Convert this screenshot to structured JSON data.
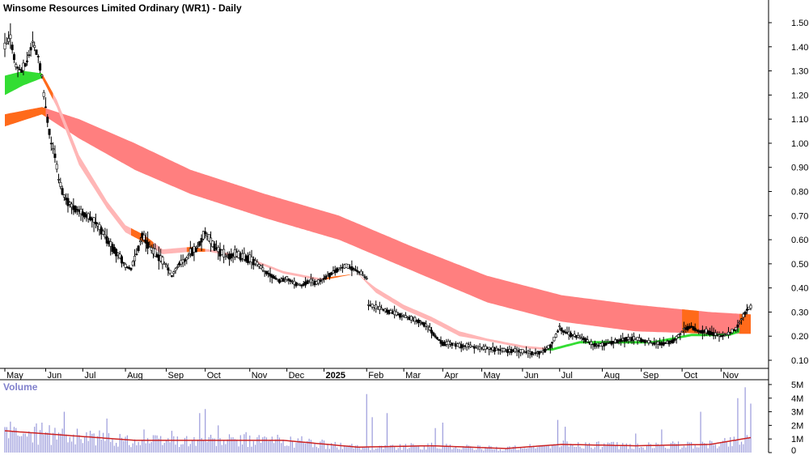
{
  "chart_data": {
    "type": "candlestick",
    "title": "Winsome Resources Limited Ordinary (WR1) - Daily",
    "price_axis": {
      "ylim": [
        0.05,
        1.55
      ],
      "ticks": [
        "1.50",
        "1.40",
        "1.30",
        "1.20",
        "1.10",
        "1.00",
        "0.90",
        "0.80",
        "0.70",
        "0.60",
        "0.50",
        "0.40",
        "0.30",
        "0.20",
        "0.10"
      ],
      "tick_values": [
        1.5,
        1.4,
        1.3,
        1.2,
        1.1,
        1.0,
        0.9,
        0.8,
        0.7,
        0.6,
        0.5,
        0.4,
        0.3,
        0.2,
        0.1
      ]
    },
    "time_axis": {
      "labels": [
        "May",
        "Jun",
        "Jul",
        "Aug",
        "Sep",
        "Oct",
        "Nov",
        "Dec",
        "2025",
        "Feb",
        "Mar",
        "Apr",
        "May",
        "Jun",
        "Jul",
        "Aug",
        "Sep",
        "Oct",
        "Nov"
      ],
      "label_day_index": [
        0,
        22,
        42,
        65,
        87,
        108,
        132,
        152,
        172,
        195,
        215,
        236,
        257,
        279,
        299,
        322,
        343,
        365,
        386
      ],
      "days_total": 402
    },
    "price_keypoints": [
      [
        0,
        1.4
      ],
      [
        3,
        1.44
      ],
      [
        6,
        1.32
      ],
      [
        9,
        1.3
      ],
      [
        12,
        1.34
      ],
      [
        15,
        1.42
      ],
      [
        18,
        1.36
      ],
      [
        20,
        1.28
      ],
      [
        21,
        1.2
      ],
      [
        23,
        1.1
      ],
      [
        25,
        1.0
      ],
      [
        27,
        0.95
      ],
      [
        29,
        0.85
      ],
      [
        32,
        0.78
      ],
      [
        36,
        0.74
      ],
      [
        40,
        0.72
      ],
      [
        44,
        0.7
      ],
      [
        48,
        0.68
      ],
      [
        52,
        0.64
      ],
      [
        56,
        0.59
      ],
      [
        60,
        0.55
      ],
      [
        63,
        0.52
      ],
      [
        65,
        0.49
      ],
      [
        68,
        0.48
      ],
      [
        71,
        0.54
      ],
      [
        74,
        0.62
      ],
      [
        77,
        0.58
      ],
      [
        80,
        0.55
      ],
      [
        84,
        0.52
      ],
      [
        88,
        0.48
      ],
      [
        90,
        0.45
      ],
      [
        94,
        0.5
      ],
      [
        98,
        0.52
      ],
      [
        100,
        0.55
      ],
      [
        103,
        0.56
      ],
      [
        106,
        0.6
      ],
      [
        108,
        0.63
      ],
      [
        112,
        0.58
      ],
      [
        116,
        0.55
      ],
      [
        120,
        0.53
      ],
      [
        124,
        0.54
      ],
      [
        128,
        0.53
      ],
      [
        132,
        0.52
      ],
      [
        136,
        0.5
      ],
      [
        140,
        0.47
      ],
      [
        144,
        0.45
      ],
      [
        148,
        0.43
      ],
      [
        152,
        0.44
      ],
      [
        156,
        0.42
      ],
      [
        160,
        0.41
      ],
      [
        164,
        0.43
      ],
      [
        168,
        0.42
      ],
      [
        172,
        0.44
      ],
      [
        176,
        0.46
      ],
      [
        180,
        0.48
      ],
      [
        184,
        0.49
      ],
      [
        188,
        0.48
      ],
      [
        192,
        0.46
      ],
      [
        195,
        0.44
      ],
      [
        196,
        0.33
      ],
      [
        200,
        0.32
      ],
      [
        204,
        0.31
      ],
      [
        208,
        0.3
      ],
      [
        212,
        0.29
      ],
      [
        216,
        0.28
      ],
      [
        220,
        0.27
      ],
      [
        224,
        0.26
      ],
      [
        228,
        0.24
      ],
      [
        232,
        0.2
      ],
      [
        236,
        0.17
      ],
      [
        240,
        0.17
      ],
      [
        245,
        0.16
      ],
      [
        250,
        0.16
      ],
      [
        255,
        0.15
      ],
      [
        260,
        0.15
      ],
      [
        265,
        0.145
      ],
      [
        270,
        0.14
      ],
      [
        275,
        0.14
      ],
      [
        280,
        0.135
      ],
      [
        285,
        0.13
      ],
      [
        290,
        0.135
      ],
      [
        294,
        0.16
      ],
      [
        297,
        0.2
      ],
      [
        299,
        0.24
      ],
      [
        301,
        0.22
      ],
      [
        304,
        0.21
      ],
      [
        308,
        0.2
      ],
      [
        312,
        0.19
      ],
      [
        316,
        0.17
      ],
      [
        320,
        0.16
      ],
      [
        325,
        0.17
      ],
      [
        330,
        0.18
      ],
      [
        335,
        0.19
      ],
      [
        340,
        0.19
      ],
      [
        345,
        0.18
      ],
      [
        350,
        0.17
      ],
      [
        355,
        0.17
      ],
      [
        360,
        0.18
      ],
      [
        363,
        0.2
      ],
      [
        366,
        0.23
      ],
      [
        370,
        0.24
      ],
      [
        374,
        0.22
      ],
      [
        378,
        0.22
      ],
      [
        382,
        0.21
      ],
      [
        386,
        0.2
      ],
      [
        390,
        0.21
      ],
      [
        394,
        0.23
      ],
      [
        397,
        0.27
      ],
      [
        400,
        0.31
      ],
      [
        402,
        0.32
      ]
    ],
    "long_term_band": {
      "upper": [
        [
          0,
          1.12
        ],
        [
          20,
          1.15
        ],
        [
          40,
          1.1
        ],
        [
          70,
          1.0
        ],
        [
          100,
          0.89
        ],
        [
          140,
          0.79
        ],
        [
          180,
          0.7
        ],
        [
          220,
          0.57
        ],
        [
          260,
          0.45
        ],
        [
          300,
          0.37
        ],
        [
          340,
          0.33
        ],
        [
          380,
          0.3
        ],
        [
          402,
          0.29
        ]
      ],
      "lower": [
        [
          0,
          1.07
        ],
        [
          20,
          1.12
        ],
        [
          40,
          1.02
        ],
        [
          70,
          0.89
        ],
        [
          100,
          0.79
        ],
        [
          140,
          0.69
        ],
        [
          180,
          0.6
        ],
        [
          220,
          0.47
        ],
        [
          260,
          0.34
        ],
        [
          300,
          0.26
        ],
        [
          340,
          0.22
        ],
        [
          380,
          0.21
        ],
        [
          402,
          0.21
        ]
      ]
    },
    "short_term_band": {
      "upper": [
        [
          0,
          1.28
        ],
        [
          10,
          1.3
        ],
        [
          20,
          1.29
        ],
        [
          28,
          1.18
        ],
        [
          40,
          0.95
        ],
        [
          55,
          0.76
        ],
        [
          65,
          0.66
        ],
        [
          75,
          0.62
        ],
        [
          85,
          0.56
        ],
        [
          100,
          0.57
        ],
        [
          110,
          0.56
        ],
        [
          130,
          0.53
        ],
        [
          150,
          0.47
        ],
        [
          170,
          0.44
        ],
        [
          190,
          0.46
        ],
        [
          200,
          0.4
        ],
        [
          215,
          0.33
        ],
        [
          230,
          0.28
        ],
        [
          245,
          0.22
        ],
        [
          260,
          0.19
        ],
        [
          280,
          0.16
        ],
        [
          295,
          0.15
        ],
        [
          310,
          0.18
        ],
        [
          330,
          0.18
        ],
        [
          350,
          0.18
        ],
        [
          370,
          0.21
        ],
        [
          390,
          0.21
        ],
        [
          402,
          0.26
        ]
      ],
      "lower": [
        [
          0,
          1.2
        ],
        [
          10,
          1.24
        ],
        [
          20,
          1.27
        ],
        [
          28,
          1.15
        ],
        [
          40,
          0.91
        ],
        [
          55,
          0.73
        ],
        [
          65,
          0.63
        ],
        [
          75,
          0.59
        ],
        [
          85,
          0.54
        ],
        [
          100,
          0.55
        ],
        [
          110,
          0.55
        ],
        [
          130,
          0.52
        ],
        [
          150,
          0.46
        ],
        [
          170,
          0.43
        ],
        [
          190,
          0.46
        ],
        [
          200,
          0.38
        ],
        [
          215,
          0.31
        ],
        [
          230,
          0.26
        ],
        [
          245,
          0.2
        ],
        [
          260,
          0.18
        ],
        [
          280,
          0.15
        ],
        [
          295,
          0.14
        ],
        [
          310,
          0.17
        ],
        [
          330,
          0.17
        ],
        [
          350,
          0.17
        ],
        [
          370,
          0.2
        ],
        [
          390,
          0.2
        ],
        [
          402,
          0.23
        ]
      ]
    },
    "volume_axis": {
      "ylim": [
        0,
        5.2
      ],
      "ticks": [
        "5M",
        "4M",
        "3M",
        "2M",
        "1M",
        "0"
      ],
      "tick_values": [
        5,
        4,
        3,
        2,
        1,
        0
      ],
      "title": "Volume"
    },
    "volume_spikes": [
      [
        10,
        1.4
      ],
      [
        20,
        2.2
      ],
      [
        32,
        3.0
      ],
      [
        55,
        2.5
      ],
      [
        75,
        1.7
      ],
      [
        90,
        1.6
      ],
      [
        105,
        2.9
      ],
      [
        108,
        3.2
      ],
      [
        115,
        2.0
      ],
      [
        130,
        1.5
      ],
      [
        160,
        1.2
      ],
      [
        195,
        4.3
      ],
      [
        198,
        2.6
      ],
      [
        206,
        2.9
      ],
      [
        232,
        1.8
      ],
      [
        236,
        2.2
      ],
      [
        298,
        2.4
      ],
      [
        302,
        1.9
      ],
      [
        340,
        1.4
      ],
      [
        354,
        1.7
      ],
      [
        375,
        3.0
      ],
      [
        395,
        4.0
      ],
      [
        399,
        4.8
      ],
      [
        402,
        3.6
      ]
    ],
    "volume_ma": [
      [
        0,
        1.6
      ],
      [
        30,
        1.3
      ],
      [
        70,
        0.9
      ],
      [
        110,
        0.9
      ],
      [
        150,
        0.9
      ],
      [
        190,
        0.4
      ],
      [
        230,
        0.5
      ],
      [
        270,
        0.3
      ],
      [
        300,
        0.6
      ],
      [
        340,
        0.5
      ],
      [
        380,
        0.6
      ],
      [
        402,
        1.1
      ]
    ],
    "colors": {
      "candle": "#000000",
      "long_band": "#ff7f7f",
      "short_band_down": "#ffb6b6",
      "short_band_up": "#33dd33",
      "band_transition": "#ff6a1a",
      "volume_bar": "#9a9adb",
      "volume_ma": "#cc2222",
      "grid_axis": "#000000"
    }
  }
}
